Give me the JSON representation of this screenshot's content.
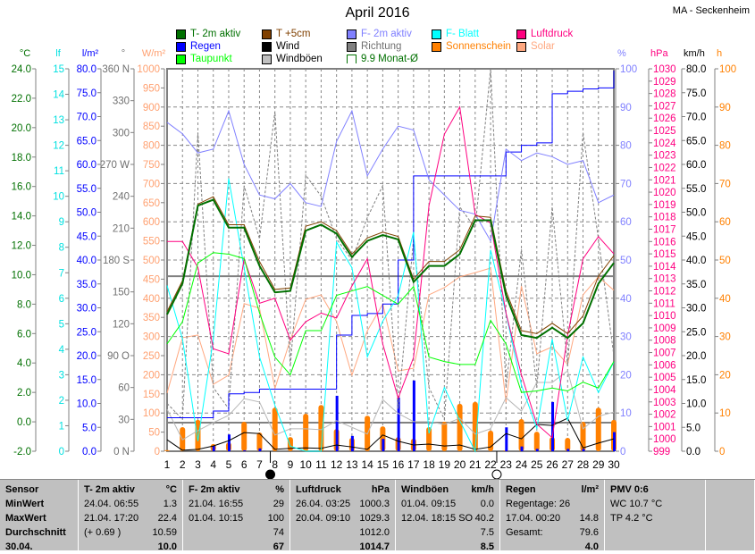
{
  "header": {
    "title": "April 2016",
    "station": "MA - Seckenheim"
  },
  "legend": [
    {
      "label": "T- 2m aktiv",
      "color": "#007000"
    },
    {
      "label": "T +5cm",
      "color": "#804000"
    },
    {
      "label": "F- 2m aktiv",
      "color": "#8080ff"
    },
    {
      "label": "F- Blatt",
      "color": "#00ffff"
    },
    {
      "label": "Luftdruck",
      "color": "#ff0080"
    },
    {
      "label": "Regen",
      "color": "#0000ff"
    },
    {
      "label": "Wind",
      "color": "#000000"
    },
    {
      "label": "Richtung",
      "color": "#808080"
    },
    {
      "label": "Sonnenschein",
      "color": "#ff8000"
    },
    {
      "label": "Solar",
      "color": "#ffa880"
    },
    {
      "label": "Taupunkt",
      "color": "#00ff00"
    },
    {
      "label": "Windböen",
      "color": "#c0c0c0"
    },
    {
      "label": "9.9 Monat-Ø",
      "color": "#007000",
      "outline": true
    }
  ],
  "chart_data": {
    "type": "line",
    "title": "April 2016",
    "x": [
      1,
      2,
      3,
      4,
      5,
      6,
      7,
      8,
      9,
      10,
      11,
      12,
      13,
      14,
      15,
      16,
      17,
      18,
      19,
      20,
      21,
      22,
      23,
      24,
      25,
      26,
      27,
      28,
      29,
      30
    ],
    "axes": {
      "degC": {
        "unit": "°C",
        "min": -2,
        "max": 24,
        "step": 2,
        "color": "#007000",
        "dec": 1
      },
      "lf": {
        "unit": "lf",
        "min": 0,
        "max": 15,
        "step": 1,
        "color": "#00e0e0",
        "dec": 0
      },
      "rain": {
        "unit": "l/m²",
        "min": 0,
        "max": 80,
        "step": 5,
        "color": "#0000ff",
        "dec": 1
      },
      "dir": {
        "unit": "°",
        "min": 0,
        "max": 360,
        "step": 30,
        "color": "#707070",
        "labels": [
          "0   N",
          "30",
          "60",
          "90  O",
          "120",
          "150",
          "180 S",
          "210",
          "240",
          "270 W",
          "300",
          "330",
          "360 N"
        ]
      },
      "solar": {
        "unit": "W/m²",
        "min": 0,
        "max": 1000,
        "step": 50,
        "color": "#ffa070",
        "dec": 0
      },
      "pct": {
        "unit": "%",
        "min": 0,
        "max": 100,
        "step": 10,
        "color": "#8080ff",
        "dec": 0
      },
      "hpa": {
        "unit": "hPa",
        "min": 999,
        "max": 1030,
        "step": 1,
        "color": "#ff0080",
        "dec": 0
      },
      "kmh": {
        "unit": "km/h",
        "min": 0,
        "max": 80,
        "step": 5,
        "color": "#000000",
        "dec": 1
      },
      "hours": {
        "unit": "h",
        "min": 0,
        "max": 100,
        "step": 10,
        "color": "#ff8000",
        "dec": 0
      }
    },
    "month_avg_temp": 9.9,
    "series": [
      {
        "name": "Sonnenschein",
        "axis": "hours",
        "kind": "bar",
        "color": "#ff8000",
        "values": [
          0.3,
          6.3,
          8.2,
          1.9,
          2.3,
          7.7,
          4.9,
          11.4,
          3.7,
          9.8,
          12.1,
          5.8,
          3.5,
          9.3,
          6.5,
          3.7,
          3.3,
          6.3,
          7.7,
          12.4,
          12.9,
          5.4,
          0.2,
          8.4,
          5.1,
          3.7,
          3.5,
          7.7,
          11.4,
          8.2
        ]
      },
      {
        "name": "Regen Tag",
        "axis": "rain",
        "kind": "thinbar",
        "color": "#0000ff",
        "values": [
          0,
          0,
          0,
          1.1,
          3.5,
          0.2,
          0.6,
          0,
          0,
          0,
          0,
          11.6,
          3.2,
          0,
          2.6,
          11.2,
          14.8,
          0,
          0,
          0,
          0,
          0,
          5,
          1,
          0.5,
          10.3,
          0.5,
          0.5,
          0,
          4
        ]
      },
      {
        "name": "Solar",
        "axis": "solar",
        "color": "#ffa880",
        "values": [
          152,
          297,
          304,
          175,
          199,
          386,
          374,
          164,
          292,
          397,
          409,
          339,
          199,
          315,
          385,
          210,
          217,
          409,
          428,
          456,
          467,
          479,
          128,
          432,
          255,
          273,
          227,
          409,
          456,
          421
        ]
      },
      {
        "name": "Richtung",
        "axis": "dir",
        "color": "#808080",
        "dash": "3,2",
        "values": [
          45,
          30,
          300,
          60,
          40,
          250,
          200,
          320,
          80,
          260,
          240,
          200,
          180,
          220,
          250,
          40,
          200,
          60,
          30,
          230,
          210,
          360,
          60,
          190,
          60,
          230,
          80,
          300,
          200,
          90
        ]
      },
      {
        "name": "Windböen",
        "axis": "kmh",
        "color": "#b8b8b8",
        "values": [
          8.8,
          2.4,
          4.3,
          6.0,
          7.5,
          11.0,
          10.3,
          3.4,
          4.7,
          4.7,
          4.5,
          6.4,
          5.0,
          3.6,
          10.8,
          7.9,
          6.2,
          6.2,
          5.6,
          6.9,
          3.6,
          4.7,
          11.2,
          8.4,
          14.4,
          14.4,
          16.8,
          4.7,
          7.3,
          8.2
        ]
      },
      {
        "name": "Wind",
        "axis": "kmh",
        "color": "#000000",
        "values": [
          2.4,
          0.2,
          0.4,
          1.1,
          2.2,
          3.9,
          3.7,
          0.4,
          0.6,
          0.7,
          0.6,
          1.3,
          0.9,
          0.4,
          3.4,
          2.1,
          1.3,
          1.5,
          1.1,
          1.3,
          0.4,
          0.9,
          3.7,
          2.6,
          5.6,
          5.4,
          6.9,
          0.7,
          1.7,
          2.6
        ]
      },
      {
        "name": "Regen",
        "axis": "rain",
        "color": "#0000ff",
        "step": true,
        "values": [
          7,
          7,
          7,
          8.4,
          12,
          12.3,
          13,
          13,
          13,
          13,
          13,
          24.3,
          28.4,
          28.8,
          30.8,
          40,
          57.6,
          57.6,
          57.6,
          57.6,
          57.6,
          57.6,
          62.6,
          64,
          64.5,
          74.8,
          75.3,
          75.8,
          76,
          79.6
        ]
      },
      {
        "name": "F- Blatt",
        "axis": "lf",
        "color": "#00ffff",
        "values": [
          6.5,
          4.4,
          0.4,
          4.4,
          10.7,
          7.2,
          3.7,
          1.8,
          0.2,
          0,
          0,
          8.2,
          7.2,
          3.7,
          5.1,
          6.1,
          8.6,
          0.7,
          2.5,
          1.2,
          0,
          7.9,
          5.4,
          2.6,
          0.9,
          4.4,
          1.2,
          3.7,
          2.3,
          3.5
        ]
      },
      {
        "name": "F- 2m aktiv",
        "axis": "pct",
        "color": "#8080ff",
        "values": [
          86,
          83,
          78,
          79,
          89,
          75,
          67,
          66,
          70,
          65,
          64,
          81,
          89,
          72,
          79,
          85,
          84,
          71,
          67,
          63,
          62,
          55,
          79,
          76,
          78,
          77,
          75,
          76,
          65,
          67
        ]
      },
      {
        "name": "Luftdruck",
        "axis": "hpa",
        "color": "#ff0080",
        "values": [
          1016,
          1016,
          1013.9,
          1007.3,
          1006.9,
          1014.6,
          1011,
          1011.4,
          1008,
          1009.5,
          1010.2,
          1009.8,
          1012.4,
          1014.6,
          1007.7,
          1003.3,
          1006.6,
          1018.9,
          1024.7,
          1026.9,
          1018.2,
          1017.5,
          1010.2,
          1005.2,
          1001.2,
          1000.1,
          1008.4,
          1014.6,
          1016.4,
          1015
        ]
      },
      {
        "name": "Taupunkt",
        "axis": "degC",
        "color": "#00ff00",
        "values": [
          5.3,
          6.8,
          10.8,
          11.5,
          11.4,
          11.1,
          7.4,
          4.4,
          3.2,
          6.2,
          6.2,
          8.6,
          8.9,
          9.2,
          8.6,
          8.0,
          9.2,
          4.4,
          4.1,
          3.9,
          3.9,
          6.9,
          5.3,
          2.0,
          2.1,
          2.3,
          2.1,
          2.7,
          2.3,
          4.1
        ]
      },
      {
        "name": "T +5cm",
        "axis": "degC",
        "color": "#804000",
        "values": [
          7.5,
          9.6,
          14.8,
          15.3,
          13.4,
          13.4,
          10.9,
          9.0,
          9.1,
          13.3,
          13.6,
          13.0,
          11.4,
          12.5,
          12.9,
          12.6,
          9.7,
          10.9,
          10.9,
          11.7,
          14.0,
          13.9,
          8.9,
          6.2,
          6.0,
          6.7,
          6.0,
          7.2,
          9.9,
          11.3
        ]
      },
      {
        "name": "T- 2m aktiv",
        "axis": "degC",
        "color": "#007000",
        "width": 2,
        "values": [
          7.3,
          9.4,
          14.7,
          15.1,
          13.2,
          13.2,
          10.6,
          8.8,
          8.9,
          13.0,
          13.4,
          12.8,
          11.2,
          12.3,
          12.7,
          12.4,
          9.5,
          10.6,
          10.6,
          11.4,
          13.7,
          13.7,
          8.6,
          5.9,
          5.7,
          6.4,
          5.7,
          6.7,
          9.4,
          10.8
        ]
      }
    ],
    "moon": [
      {
        "phase": "new",
        "day": 7.7
      },
      {
        "phase": "full",
        "day": 22.4
      }
    ]
  },
  "table": {
    "columns": [
      {
        "head": [
          "Sensor",
          ""
        ],
        "rows": [
          [
            "MinWert",
            ""
          ],
          [
            "MaxWert",
            ""
          ],
          [
            "Durchschnitt",
            ""
          ],
          [
            "30.04.",
            ""
          ]
        ],
        "bold": true
      },
      {
        "head": [
          "T- 2m aktiv",
          "°C"
        ],
        "rows": [
          [
            "24.04.  06:55",
            "1.3"
          ],
          [
            "21.04.  17:20",
            "22.4"
          ],
          [
            "(+ 0.69 )",
            "10.59"
          ],
          [
            "",
            "10.0"
          ]
        ]
      },
      {
        "head": [
          "F- 2m aktiv",
          "%"
        ],
        "rows": [
          [
            "21.04.  16:55",
            "29"
          ],
          [
            "01.04.  10:15",
            "100"
          ],
          [
            "",
            "74"
          ],
          [
            "",
            "67"
          ]
        ]
      },
      {
        "head": [
          "Luftdruck",
          "hPa"
        ],
        "rows": [
          [
            "26.04.  03:25",
            "1000.3"
          ],
          [
            "20.04.  09:10",
            "1029.3"
          ],
          [
            "",
            "1012.0"
          ],
          [
            "",
            "1014.7"
          ]
        ]
      },
      {
        "head": [
          "Windböen",
          "km/h"
        ],
        "rows": [
          [
            "01.04.  09:15",
            "0.0"
          ],
          [
            "12.04.  18:15 SO",
            "40.2"
          ],
          [
            "",
            "7.5"
          ],
          [
            "",
            "8.5"
          ]
        ]
      },
      {
        "head": [
          "Regen",
          "l/m²"
        ],
        "rows": [
          [
            "Regentage: 26",
            ""
          ],
          [
            "17.04.  00:20",
            "14.8"
          ],
          [
            "Gesamt:",
            "79.6"
          ],
          [
            "",
            "4.0"
          ]
        ]
      },
      {
        "head": [
          "PMV 0:6",
          ""
        ],
        "rows": [
          [
            "WC 10.7 °C",
            ""
          ],
          [
            "TP 4.2 °C",
            ""
          ],
          [
            "",
            ""
          ],
          [
            "",
            ""
          ]
        ]
      }
    ]
  }
}
